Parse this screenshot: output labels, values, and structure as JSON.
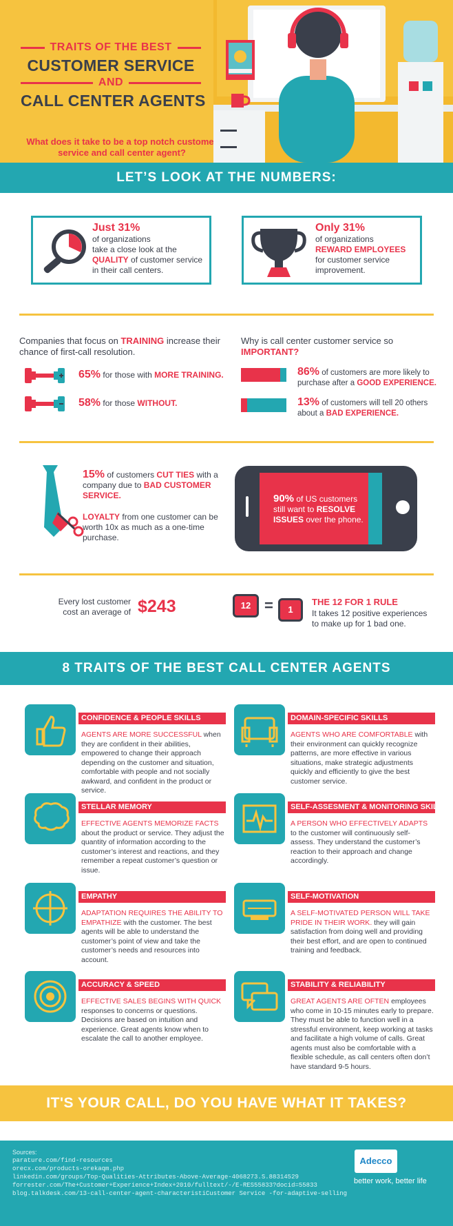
{
  "header": {
    "title_top": "TRAITS OF THE BEST",
    "title_main": "CUSTOMER SERVICE",
    "title_and": "AND",
    "title_bottom": "CALL CENTER AGENTS",
    "subtitle": "What does it take to be a top notch customer service and call center agent?"
  },
  "numbers_band": "LET’S LOOK AT THE NUMBERS:",
  "stat_quality": {
    "lead": "Just 31%",
    "line1": "of organizations",
    "line2": "take a close look at the",
    "highlight": "QUALITY",
    "line3": "of customer service",
    "line4": "in their call centers."
  },
  "stat_reward": {
    "lead": "Only 31%",
    "line1": "of organizations",
    "highlight": "REWARD EMPLOYEES",
    "line2": "for customer service",
    "line3": "improvement."
  },
  "training": {
    "heading_pre": "Companies that focus on",
    "heading_hl": "TRAINING",
    "heading_post": "increase their chance of first-call resolution.",
    "rows": [
      {
        "pct": "65%",
        "text": "for those with",
        "hl": "MORE TRAINING."
      },
      {
        "pct": "58%",
        "text": "for those",
        "hl": "WITHOUT."
      }
    ]
  },
  "important": {
    "heading_pre": "Why is call center customer service so",
    "heading_hl": "IMPORTANT?",
    "rows": [
      {
        "pct": "86%",
        "text": "of customers are more likely to purchase after a",
        "hl": "GOOD EXPERIENCE."
      },
      {
        "pct": "13%",
        "text": "of customers will tell 20 others about a",
        "hl": "BAD EXPERIENCE."
      }
    ]
  },
  "cut_ties": {
    "pct": "15%",
    "text": "of customers",
    "hl1": "CUT TIES",
    "text2": "with a company due to",
    "hl2": "BAD CUSTOMER SERVICE.",
    "loyalty_hl": "LOYALTY",
    "loyalty_text": "from one customer can be worth 10x as much as a one-time purchase."
  },
  "phone": {
    "pct": "90%",
    "text": "of US customers still want to",
    "hl": "RESOLVE ISSUES",
    "text2": "over the phone."
  },
  "lost_customer": {
    "text": "Every lost customer cost an average of",
    "amount": "$243"
  },
  "rule": {
    "num_up": "12",
    "equals": "=",
    "num_down": "1",
    "title": "THE 12 FOR 1 RULE",
    "text": "It takes 12 positive experiences to make up for 1 bad one."
  },
  "traits_band": "8 TRAITS OF THE BEST CALL CENTER AGENTS",
  "traits": [
    {
      "title": "CONFIDENCE & PEOPLE SKILLS",
      "lead": "AGENTS ARE MORE SUCCESSFUL",
      "rest": "when they are confident in their abilities, empowered to change their approach depending on the customer and situation, comfortable with people and not socially awkward, and confident in the product or service.",
      "icon": "thumbs-up-icon"
    },
    {
      "title": "DOMAIN-SPECIFIC SKILLS",
      "lead": "AGENTS WHO ARE COMFORTABLE",
      "rest": "with their environment can quickly recognize patterns, are more effective in various situations, make strategic adjustments quickly and efficiently to give the best customer service.",
      "icon": "armchair-icon"
    },
    {
      "title": "STELLAR MEMORY",
      "lead": "EFFECTIVE AGENTS MEMORIZE FACTS",
      "rest": "about the product or service. They adjust the quantity of information according to the customer’s interest and reactions, and they remember a repeat customer’s question or issue.",
      "icon": "brain-icon"
    },
    {
      "title": "SELF-ASSESMENT & MONITORING SKILLS",
      "lead": "A PERSON WHO EFFECTIVELY ADAPTS",
      "rest": "to the customer will continuously self-assess. They understand the customer’s reaction to their approach and change accordingly.",
      "icon": "heartbeat-monitor-icon"
    },
    {
      "title": "EMPATHY",
      "lead": "ADAPTATION REQUIRES THE ABILITY TO EMPATHIZE",
      "rest": "with the customer. The best agents will be able to understand the customer’s point of view and take the customer’s needs and resources into account.",
      "icon": "crosshair-icon"
    },
    {
      "title": "SELF-MOTIVATION",
      "lead": "A SELF-MOTIVATED PERSON WILL TAKE PRIDE IN THEIR WORK.",
      "rest": "they will gain satisfaction from doing well and providing their best effort, and are open to continued training and feedback.",
      "icon": "snooze-clock-icon"
    },
    {
      "title": "ACCURACY & SPEED",
      "lead": "EFFECTIVE SALES BEGINS WITH QUICK",
      "rest": "responses to concerns or questions. Decisions are based on intuition and experience. Great agents know when to escalate the call to another employee.",
      "icon": "target-icon"
    },
    {
      "title": "STABILITY & RELIABILITY",
      "lead": "GREAT AGENTS ARE OFTEN",
      "rest": "employees who come in 10-15 minutes early to prepare. They must be able to function well in a stressful environment, keep working at tasks and facilitate a high volume of calls. Great agents must also be comfortable with a flexible schedule, as call centers often don’t have standard 9-5 hours.",
      "icon": "chat-bubbles-icon"
    }
  ],
  "call_band": "IT'S YOUR CALL, DO YOU HAVE WHAT IT TAKES?",
  "sources": {
    "label": "Sources:",
    "lines": [
      "parature.com/find-resources",
      "orecx.com/products-orekaqm.php",
      "linkedin.com/groups/Top-Qualities-Attributes-Above-Average-4068273.S.88314529",
      "forrester.com/The+Customer+Experience+Index+2010/fulltext/-/E-RES55833?docid=55833",
      "blog.talkdesk.com/13-call-center-agent-characteristiCustomer Service -for-adaptive-selling"
    ]
  },
  "brand": {
    "name": "Adecco",
    "tagline": "better work, better life"
  },
  "colors": {
    "yellow": "#f6c33f",
    "teal": "#23a7b1",
    "red": "#e8334a",
    "navy": "#3a3f4b"
  }
}
